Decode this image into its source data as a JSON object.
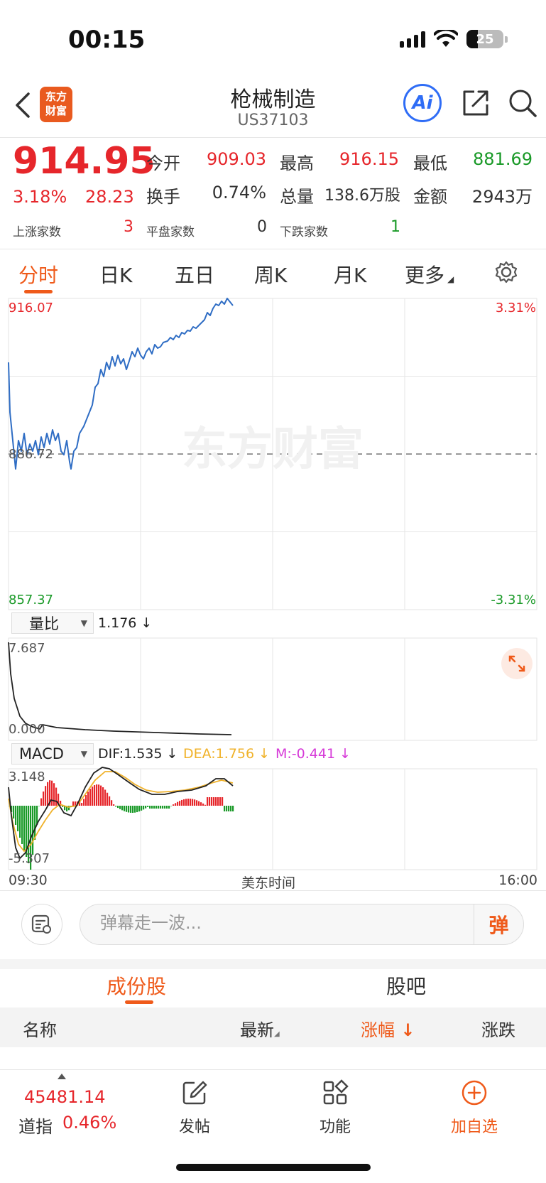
{
  "status_bar": {
    "time": "00:15",
    "battery": "25"
  },
  "nav": {
    "logo_text": "东方财富",
    "title": "枪械制造",
    "code": "US37103",
    "ai_label": "Ai"
  },
  "quote": {
    "price": "914.95",
    "change_pct": "3.18%",
    "change": "28.23",
    "open_label": "今开",
    "open": "909.03",
    "high_label": "最高",
    "high": "916.15",
    "low_label": "最低",
    "low": "881.69",
    "turnover_label": "换手",
    "turnover": "0.74%",
    "volume_label": "总量",
    "volume": "138.6万股",
    "amount_label": "金额",
    "amount": "2943万",
    "up_label": "上涨家数",
    "up_count": "3",
    "flat_label": "平盘家数",
    "flat_count": "0",
    "down_label": "下跌家数",
    "down_count": "1"
  },
  "tabs": [
    "分时",
    "日K",
    "五日",
    "周K",
    "月K",
    "更多"
  ],
  "chart": {
    "price_max": "916.07",
    "price_min": "857.37",
    "pct_max": "3.31%",
    "pct_min": "-3.31%",
    "prev_close": "886.72",
    "watermark": "东方财富",
    "volume_ratio_selector": "量比",
    "volume_ratio_value": "1.176 ↓",
    "vr_max": "7.687",
    "vr_min": "0.000",
    "macd_selector": "MACD",
    "dif": "DIF:1.535 ↓",
    "dea": "DEA:1.756 ↓",
    "m": "M:-0.441 ↓",
    "macd_max": "3.148",
    "macd_min": "-5.307",
    "time_start": "09:30",
    "time_mid": "美东时间",
    "time_end": "16:00",
    "colors": {
      "line": "#2f6dc4",
      "up": "#e6262b",
      "down": "#1a9a28",
      "dea": "#f0b22a",
      "m": "#d63ad8"
    }
  },
  "danmaku": {
    "placeholder": "弹幕走一波...",
    "button": "弹"
  },
  "sections": {
    "constituents": "成份股",
    "forum": "股吧"
  },
  "list_header": {
    "name": "名称",
    "latest": "最新",
    "change_pct": "涨幅",
    "change": "涨跌"
  },
  "bottom": {
    "index_value": "45481.14",
    "index_name": "道指",
    "index_pct": "0.46%",
    "post": "发帖",
    "functions": "功能",
    "add_watch": "加自选"
  }
}
